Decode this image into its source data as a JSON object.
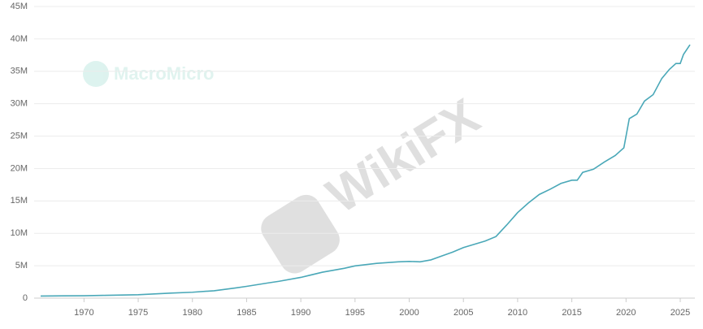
{
  "chart_data": {
    "type": "line",
    "x": [
      1966,
      1968,
      1970,
      1972,
      1975,
      1978,
      1980,
      1982,
      1984,
      1985,
      1987,
      1988,
      1990,
      1992,
      1994,
      1995,
      1997,
      1999,
      2000,
      2001,
      2002,
      2003,
      2004,
      2005,
      2006,
      2007,
      2008,
      2009,
      2010,
      2011,
      2012,
      2013,
      2014,
      2015,
      2015.5,
      2016,
      2017,
      2018,
      2019,
      2019.8,
      2020.3,
      2021,
      2021.7,
      2022.5,
      2023.3,
      2024,
      2024.6,
      2025,
      2025.3,
      2025.9
    ],
    "series": [
      {
        "color": "#4aa8b8",
        "values": [
          0.32,
          0.35,
          0.37,
          0.43,
          0.53,
          0.77,
          0.91,
          1.14,
          1.57,
          1.82,
          2.35,
          2.6,
          3.2,
          4.0,
          4.6,
          4.97,
          5.37,
          5.6,
          5.67,
          5.6,
          5.9,
          6.5,
          7.1,
          7.8,
          8.3,
          8.8,
          9.5,
          11.3,
          13.2,
          14.7,
          16.0,
          16.8,
          17.7,
          18.2,
          18.2,
          19.4,
          19.9,
          21.0,
          22.0,
          23.2,
          27.7,
          28.4,
          30.4,
          31.4,
          33.9,
          35.3,
          36.2,
          36.2,
          37.6,
          39.1
        ]
      }
    ],
    "xlim": [
      1965.4,
      2026.35
    ],
    "xticks": [
      1970,
      1975,
      1980,
      1985,
      1990,
      1995,
      2000,
      2005,
      2010,
      2015,
      2020,
      2025
    ],
    "ylim": [
      0,
      45
    ],
    "yticks": [
      0,
      {
        "value": 5,
        "label": "5M"
      },
      {
        "value": 10,
        "label": "10M"
      },
      {
        "value": 15,
        "label": "15M"
      },
      {
        "value": 20,
        "label": "20M"
      },
      {
        "value": 25,
        "label": "25M"
      },
      {
        "value": 30,
        "label": "30M"
      },
      {
        "value": 35,
        "label": "35M"
      },
      {
        "value": 40,
        "label": "40M"
      },
      {
        "value": 45,
        "label": "45M"
      }
    ],
    "grid": true,
    "watermarks": [
      "MacroMicro",
      "WikiFX"
    ]
  }
}
